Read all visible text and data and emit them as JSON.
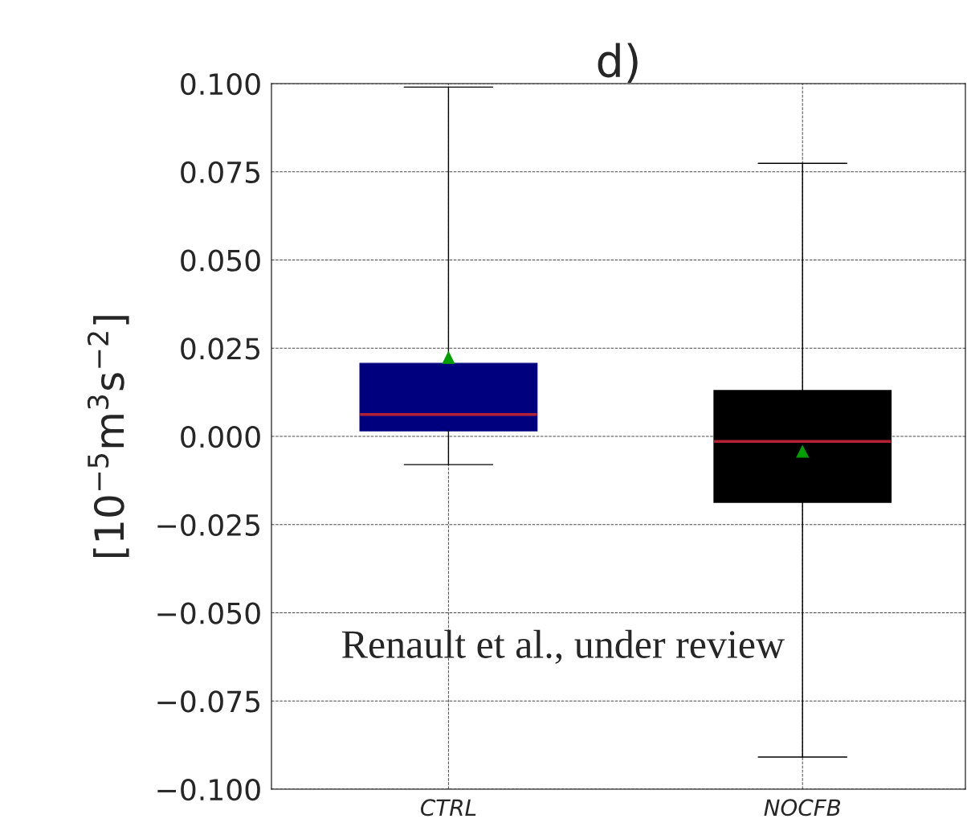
{
  "chart_data": {
    "type": "box",
    "title": "d)",
    "ylabel": "[10$^{−5}$m$^{3}$s$^{−2}$]",
    "categories": [
      "CTRL",
      "NOCFB"
    ],
    "boxes": [
      {
        "low": -0.008,
        "q1": 0.0016,
        "median": 0.0062,
        "q3": 0.0207,
        "high": 0.099,
        "mean": 0.0223
      },
      {
        "low": -0.0909,
        "q1": -0.0187,
        "median": -0.0014,
        "q3": 0.013,
        "high": 0.0774,
        "mean": -0.0043
      }
    ],
    "colors": [
      "#00007f",
      "#000000"
    ],
    "ylim": [
      -0.1,
      0.1
    ],
    "yticks": [
      {
        "value": -0.1,
        "label": "−0.100"
      },
      {
        "value": -0.075,
        "label": "−0.075"
      },
      {
        "value": -0.05,
        "label": "−0.050"
      },
      {
        "value": -0.025,
        "label": "−0.025"
      },
      {
        "value": 0,
        "label": "0.000"
      },
      {
        "value": 0.025,
        "label": "0.025"
      },
      {
        "value": 0.05,
        "label": "0.050"
      },
      {
        "value": 0.075,
        "label": "0.075"
      },
      {
        "value": 0.1,
        "label": "0.100"
      }
    ],
    "grid": true,
    "annotations": [
      "Renault et al., under review"
    ]
  }
}
